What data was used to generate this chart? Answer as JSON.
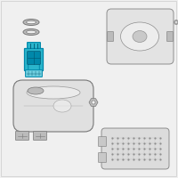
{
  "bg_color": "#f0f0f0",
  "border_color": "#cccccc",
  "highlight_color": "#2ab5cc",
  "part_color": "#999999",
  "part_color2": "#bbbbbb",
  "part_color3": "#777777",
  "tank_color": "#e0e0e0",
  "pump_dark": "#0088aa",
  "pump_darker": "#005570",
  "figure_size": [
    2.0,
    2.0
  ],
  "dpi": 100
}
